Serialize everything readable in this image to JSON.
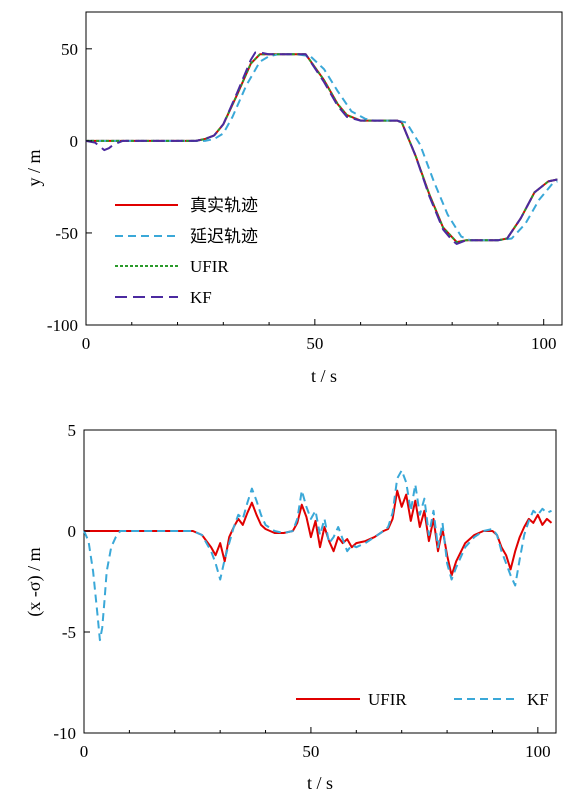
{
  "chart_data": [
    {
      "type": "line",
      "xlabel": "t / s",
      "ylabel": "y / m",
      "xlim": [
        0,
        104
      ],
      "ylim": [
        -100,
        70
      ],
      "xticks": [
        0,
        50,
        100
      ],
      "yticks": [
        50,
        0,
        -50,
        -100
      ],
      "legend_position": "left-middle",
      "series": [
        {
          "name": "真实轨迹",
          "color": "#e00000",
          "style": "solid",
          "x": [
            0,
            10,
            20,
            24,
            26,
            28,
            30,
            33,
            36,
            38,
            40,
            46,
            48,
            52,
            55,
            57,
            60,
            63,
            66,
            68,
            69,
            72,
            75,
            78,
            81,
            83,
            86,
            90,
            92,
            95,
            98,
            101,
            103
          ],
          "y": [
            0,
            0,
            0,
            0,
            1,
            3,
            9,
            25,
            42,
            47,
            47,
            47,
            47,
            33,
            20,
            14,
            11,
            11,
            11,
            11,
            10,
            -8,
            -29,
            -47,
            -55,
            -54,
            -54,
            -54,
            -53,
            -42,
            -28,
            -22,
            -21
          ]
        },
        {
          "name": "延迟轨迹",
          "color": "#3aa8d8",
          "style": "dashed",
          "x": [
            0,
            10,
            20,
            26,
            28,
            30,
            32,
            35,
            38,
            40,
            42,
            46,
            49,
            52,
            55,
            58,
            61,
            63,
            66,
            68,
            70,
            73,
            76,
            79,
            82,
            84,
            87,
            90,
            93,
            96,
            99,
            102,
            103
          ],
          "y": [
            0,
            0,
            0,
            0,
            1,
            4,
            13,
            30,
            43,
            46,
            47,
            47,
            46,
            39,
            27,
            16,
            12,
            11,
            11,
            11,
            10,
            -2,
            -22,
            -40,
            -52,
            -54,
            -54,
            -54,
            -53,
            -45,
            -32,
            -23,
            -22
          ]
        },
        {
          "name": "UFIR",
          "color": "#2a9a2a",
          "style": "dotted",
          "x": [
            0,
            10,
            20,
            24,
            26,
            28,
            30,
            33,
            36,
            38,
            40,
            46,
            48,
            52,
            55,
            57,
            60,
            63,
            66,
            68,
            69,
            72,
            75,
            78,
            81,
            83,
            86,
            90,
            92,
            95,
            98,
            101,
            103
          ],
          "y": [
            0,
            0,
            0,
            0,
            1,
            3,
            9,
            25,
            42,
            47,
            47,
            47,
            47,
            33,
            20,
            14,
            11,
            11,
            11,
            11,
            10,
            -8,
            -29,
            -47,
            -55,
            -54,
            -54,
            -54,
            -53,
            -42,
            -28,
            -22,
            -21
          ]
        },
        {
          "name": "KF",
          "color": "#4b2aa0",
          "style": "dashed",
          "x": [
            0,
            2,
            3,
            4,
            5,
            6,
            8,
            10,
            20,
            24,
            26,
            28,
            30,
            33,
            36,
            37,
            38,
            40,
            46,
            48,
            52,
            55,
            57,
            60,
            63,
            66,
            68,
            69,
            72,
            75,
            78,
            80,
            81,
            83,
            86,
            90,
            92,
            95,
            98,
            101,
            103
          ],
          "y": [
            0,
            -1,
            -3,
            -5,
            -4,
            -2,
            0,
            0,
            0,
            0,
            1,
            3,
            9,
            26,
            44,
            48,
            48,
            47,
            47,
            47,
            32,
            19,
            13,
            11,
            11,
            11,
            11,
            10,
            -8,
            -30,
            -48,
            -54,
            -56,
            -54,
            -54,
            -54,
            -53,
            -42,
            -28,
            -22,
            -21
          ]
        }
      ]
    },
    {
      "type": "line",
      "xlabel": "t / s",
      "ylabel": "(x -σ)  / m",
      "xlim": [
        0,
        104
      ],
      "ylim": [
        -10,
        5
      ],
      "xticks": [
        0,
        50,
        100
      ],
      "yticks": [
        5,
        0,
        -5,
        -10
      ],
      "legend_position": "bottom-right",
      "series": [
        {
          "name": "UFIR",
          "color": "#e00000",
          "style": "solid",
          "x": [
            0,
            20,
            24,
            26,
            27,
            28,
            29,
            30,
            31,
            32,
            33,
            34,
            35,
            36,
            37,
            38,
            39,
            40,
            42,
            44,
            46,
            47,
            48,
            49,
            50,
            51,
            52,
            53,
            54,
            55,
            56,
            57,
            58,
            59,
            60,
            62,
            64,
            66,
            67,
            68,
            69,
            70,
            71,
            72,
            73,
            74,
            75,
            76,
            77,
            78,
            79,
            80,
            81,
            82,
            84,
            86,
            88,
            90,
            91,
            92,
            93,
            94,
            95,
            96,
            97,
            98,
            99,
            100,
            101,
            102,
            103
          ],
          "y": [
            0,
            0,
            0,
            -0.2,
            -0.5,
            -0.8,
            -1.2,
            -0.6,
            -1.5,
            -0.3,
            0.2,
            0.6,
            0.3,
            0.9,
            1.4,
            0.8,
            0.3,
            0.1,
            -0.1,
            -0.1,
            0,
            0.4,
            1.3,
            0.7,
            -0.3,
            0.5,
            -0.8,
            0.2,
            -0.5,
            -1.0,
            -0.3,
            -0.6,
            -0.4,
            -0.8,
            -0.6,
            -0.5,
            -0.3,
            0,
            0.1,
            0.6,
            2.0,
            1.2,
            1.8,
            0.5,
            1.5,
            0.2,
            1.0,
            -0.5,
            0.6,
            -1.0,
            0.1,
            -1.2,
            -2.2,
            -1.5,
            -0.6,
            -0.2,
            0,
            0,
            -0.2,
            -0.8,
            -1.2,
            -1.9,
            -1.0,
            -0.3,
            0.2,
            0.6,
            0.4,
            0.8,
            0.3,
            0.6,
            0.4
          ]
        },
        {
          "name": "KF",
          "color": "#3aa8d8",
          "style": "dashed",
          "x": [
            0,
            1,
            2,
            3,
            3.5,
            4,
            4.5,
            5,
            6,
            7,
            8,
            10,
            20,
            24,
            26,
            27,
            28,
            29,
            30,
            31,
            32,
            33,
            34,
            35,
            36,
            37,
            38,
            39,
            40,
            42,
            44,
            46,
            47,
            48,
            49,
            50,
            51,
            52,
            53,
            54,
            55,
            56,
            57,
            58,
            59,
            60,
            62,
            64,
            66,
            67,
            68,
            69,
            70,
            71,
            72,
            73,
            74,
            75,
            76,
            77,
            78,
            79,
            80,
            81,
            82,
            84,
            86,
            88,
            90,
            91,
            92,
            93,
            94,
            95,
            96,
            97,
            98,
            99,
            100,
            101,
            102,
            103
          ],
          "y": [
            0,
            -0.5,
            -2.0,
            -4.2,
            -5.4,
            -4.8,
            -3.5,
            -2.0,
            -0.8,
            -0.3,
            0,
            0,
            0,
            0,
            -0.2,
            -0.6,
            -1.0,
            -1.6,
            -2.4,
            -1.4,
            -0.6,
            0.2,
            0.8,
            0.6,
            1.4,
            2.1,
            1.5,
            0.8,
            0.3,
            0,
            -0.1,
            0,
            0.6,
            2.0,
            1.2,
            0.6,
            1.0,
            -0.2,
            0.6,
            -0.6,
            -0.3,
            0.2,
            -0.4,
            -1.0,
            -0.7,
            -0.8,
            -0.6,
            -0.3,
            0,
            0.2,
            0.9,
            2.6,
            3.0,
            2.4,
            1.0,
            2.3,
            0.8,
            1.6,
            -0.2,
            1.0,
            -0.8,
            0.4,
            -1.6,
            -2.4,
            -1.8,
            -0.8,
            -0.3,
            0,
            0.1,
            -0.2,
            -1.0,
            -1.6,
            -2.2,
            -2.7,
            -1.4,
            -0.2,
            0.5,
            1.0,
            0.8,
            1.1,
            0.9,
            1.0
          ]
        }
      ]
    }
  ]
}
